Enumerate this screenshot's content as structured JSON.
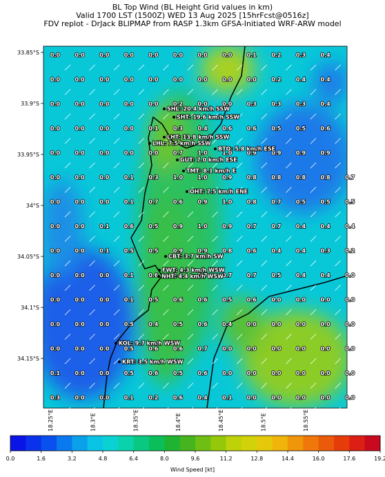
{
  "header": {
    "title_lines": [
      "BL Top Wind (BL Height Grid values in km)",
      "Valid 1700 LST (1500Z) WED 13 Aug 2025 [15hrFcst@0516z]",
      "FDV replot - DrJack BLIPMAP from RASP 1.3km GFSA-Initiated WRF-ARW model"
    ]
  },
  "map": {
    "lat_labels": [
      "33.85°S",
      "33.9°S",
      "33.95°S",
      "34°S",
      "34.05°S",
      "34.1°S",
      "34.15°S"
    ],
    "lon_labels": [
      "18.25°E",
      "18.3°E",
      "18.35°E",
      "18.4°E",
      "18.45°E",
      "18.5°E",
      "18.55°E"
    ],
    "grid_rows": [
      [
        "0.0",
        "0.0",
        "0.0",
        "0.0",
        "0.0",
        "0.0",
        "0.0",
        "0.0",
        "0.1",
        "0.2",
        "0.3",
        "0.4"
      ],
      [
        "0.0",
        "0.0",
        "0.0",
        "0.0",
        "0.0",
        "0.0",
        "0.0",
        "0.0",
        "0.0",
        "0.2",
        "0.4",
        "0.4"
      ],
      [
        "0.0",
        "0.0",
        "0.0",
        "0.0",
        "0.0",
        "0.2",
        "0.0",
        "0.0",
        "0.3",
        "0.3",
        "0.3",
        "0.4"
      ],
      [
        "0.0",
        "0.0",
        "0.0",
        "0.0",
        "0.1",
        "0.3",
        "0.4",
        "0.6",
        "0.6",
        "0.5",
        "0.5",
        "0.6"
      ],
      [
        "0.0",
        "0.0",
        "0.0",
        "0.0",
        "0.0",
        "0.7",
        "1.0",
        "1.0",
        "0.9",
        "0.9",
        "0.9",
        "0.9"
      ],
      [
        "0.0",
        "0.0",
        "0.0",
        "0.1",
        "0.3",
        "1.0",
        "1.0",
        "0.9",
        "0.8",
        "0.8",
        "0.8",
        "0.8",
        "0.7"
      ],
      [
        "0.0",
        "0.0",
        "0.0",
        "0.1",
        "0.7",
        "0.6",
        "0.9",
        "1.0",
        "0.8",
        "0.7",
        "0.5",
        "0.5",
        "0.5"
      ],
      [
        "0.0",
        "0.0",
        "0.1",
        "0.6",
        "0.5",
        "0.9",
        "1.0",
        "0.9",
        "0.7",
        "0.7",
        "0.4",
        "0.4",
        "0.4"
      ],
      [
        "0.0",
        "0.0",
        "0.1",
        "0.5",
        "0.5",
        "0.9",
        "0.9",
        "0.8",
        "0.6",
        "0.4",
        "0.4",
        "0.3",
        "0.2"
      ],
      [
        "0.0",
        "0.0",
        "0.0",
        "0.1",
        "0.6",
        "0.8",
        "0.7",
        "0.7",
        "0.7",
        "0.5",
        "0.4",
        "0.4",
        "0.0"
      ],
      [
        "0.0",
        "0.0",
        "0.0",
        "0.1",
        "0.5",
        "0.6",
        "0.6",
        "0.5",
        "0.6",
        "0.0",
        "0.0",
        "0.0",
        "0.0"
      ],
      [
        "0.0",
        "0.0",
        "0.0",
        "0.5",
        "0.4",
        "0.5",
        "0.6",
        "0.4",
        "0.0",
        "0.0",
        "0.0",
        "0.0",
        "0.0"
      ],
      [
        "0.0",
        "0.0",
        "0.0",
        "0.5",
        "0.6",
        "0.6",
        "0.7",
        "0.0",
        "0.0",
        "0.0",
        "0.0",
        "0.0",
        "0.0"
      ],
      [
        "0.1",
        "0.0",
        "0.0",
        "0.5",
        "0.6",
        "0.5",
        "0.6",
        "0.0",
        "0.0",
        "0.0",
        "0.0",
        "0.0",
        "0.0"
      ],
      [
        "0.3",
        "0.0",
        "0.0",
        "0.1",
        "0.2",
        "0.6",
        "0.4",
        "0.1",
        "0.0",
        "0.0",
        "0.0",
        "0.0",
        "0.0"
      ]
    ],
    "stations": [
      "SHL: 20.4 km/h SSW",
      "SHT: 19.6 km/h SSW",
      "LHT: 13.8 km/h SSW",
      "LHL: 7.5 km/h SSW",
      "BTO: 5.8 km/h ESE",
      "GUT: 7.0 km/h ESE",
      "TMT: 8.1 km/h E",
      "OHT: 7.5 km/h ENE",
      "CBT: 3.7 km/h SW",
      "FWT: 4.3 km/h WSW",
      "NHT: 4.4 km/h WSW",
      "KOL: 9.7 km/h WSW",
      "KRT: 3.5 km/h WSW"
    ]
  },
  "colorbar": {
    "label": "Wind Speed [kt]",
    "ticks": [
      "0.0",
      "1.6",
      "3.2",
      "4.8",
      "6.4",
      "8.0",
      "9.6",
      "11.2",
      "12.8",
      "14.4",
      "16.0",
      "17.6",
      "19.2"
    ],
    "colors": [
      "#0a14e6",
      "#0a32ea",
      "#0a50ee",
      "#0a78ee",
      "#0aa0ea",
      "#0ac4e6",
      "#0ad2d2",
      "#0ad2aa",
      "#0ac882",
      "#0abe5a",
      "#1eb432",
      "#46b41e",
      "#6ebe14",
      "#96c80a",
      "#bed20a",
      "#d2d20a",
      "#e6c80a",
      "#f0b40a",
      "#f0960a",
      "#f0780a",
      "#eb5a0a",
      "#e63c0a",
      "#dc1e14",
      "#c80a1e"
    ]
  }
}
